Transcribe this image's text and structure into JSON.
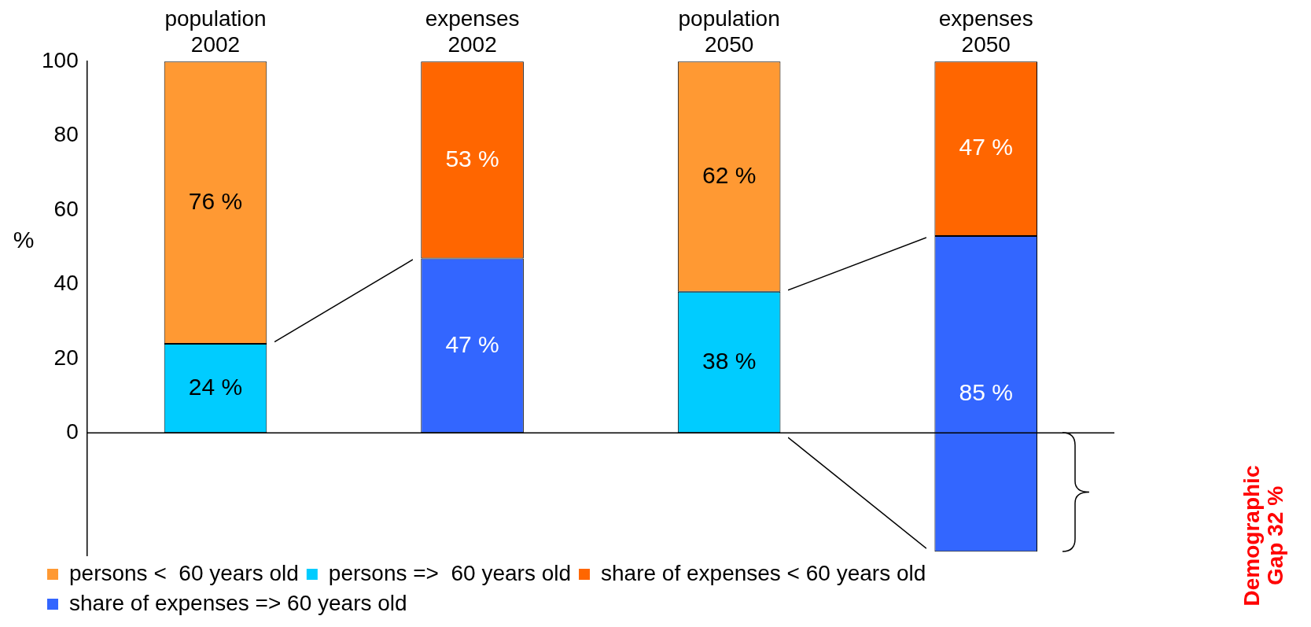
{
  "chart_data": {
    "type": "bar",
    "ylabel": "%",
    "categories": [
      "population 2002",
      "expenses 2002",
      "population 2050",
      "expenses 2050"
    ],
    "series": [
      {
        "name": "persons <  60 years old",
        "color": "#ff9933",
        "values": [
          76,
          null,
          62,
          null
        ],
        "base": [
          24,
          null,
          38,
          null
        ],
        "value_labels": [
          "76 %",
          null,
          "62 %",
          null
        ]
      },
      {
        "name": "persons =>  60 years old",
        "color": "#00ccff",
        "values": [
          24,
          null,
          38,
          null
        ],
        "base": [
          0,
          null,
          0,
          null
        ],
        "value_labels": [
          "24 %",
          null,
          "38 %",
          null
        ]
      },
      {
        "name": "share of expenses < 60 years old",
        "color": "#ff6600",
        "values": [
          null,
          53,
          null,
          47
        ],
        "base": [
          null,
          47,
          null,
          53
        ],
        "value_labels": [
          null,
          "53 %",
          null,
          "47 %"
        ]
      },
      {
        "name": "share of expenses => 60 years old",
        "color": "#3366ff",
        "values": [
          null,
          47,
          null,
          85
        ],
        "base": [
          null,
          0,
          null,
          -32
        ],
        "value_labels": [
          null,
          "47 %",
          null,
          "85 %"
        ]
      }
    ],
    "ylim": [
      -33,
      100
    ],
    "yticks": [
      0,
      20,
      40,
      60,
      80,
      100
    ],
    "ref_lines": [
      {
        "axis": "y",
        "value": 0
      }
    ],
    "grid": false,
    "legend": "bottom left",
    "annotations": [
      "Demographic Gap 32 %"
    ]
  }
}
